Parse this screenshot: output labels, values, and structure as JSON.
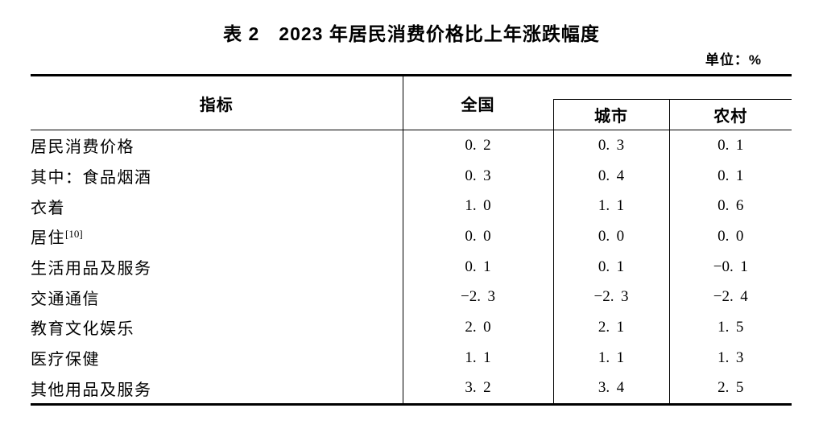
{
  "page": {
    "background_color": "#ffffff",
    "text_color": "#000000",
    "line_color": "#000000"
  },
  "title": "表 2　2023 年居民消费价格比上年涨跌幅度",
  "unit_label": "单位：%",
  "table": {
    "columns": {
      "indicator": "指标",
      "national": "全国",
      "urban": "城市",
      "rural": "农村"
    },
    "rows": [
      {
        "label": "居民消费价格",
        "indent": 0,
        "sup": "",
        "national": "0.2",
        "urban": "0.3",
        "rural": "0.1"
      },
      {
        "label": "其中：食品烟酒",
        "indent": 1,
        "sup": "",
        "national": "0.3",
        "urban": "0.4",
        "rural": "0.1"
      },
      {
        "label": "衣着",
        "indent": 2,
        "sup": "",
        "national": "1.0",
        "urban": "1.1",
        "rural": "0.6"
      },
      {
        "label": "居住",
        "indent": 2,
        "sup": "[10]",
        "national": "0.0",
        "urban": "0.0",
        "rural": "0.0"
      },
      {
        "label": "生活用品及服务",
        "indent": 2,
        "sup": "",
        "national": "0.1",
        "urban": "0.1",
        "rural": "-0.1"
      },
      {
        "label": "交通通信",
        "indent": 2,
        "sup": "",
        "national": "-2.3",
        "urban": "-2.3",
        "rural": "-2.4"
      },
      {
        "label": "教育文化娱乐",
        "indent": 2,
        "sup": "",
        "national": "2.0",
        "urban": "2.1",
        "rural": "1.5"
      },
      {
        "label": "医疗保健",
        "indent": 2,
        "sup": "",
        "national": "1.1",
        "urban": "1.1",
        "rural": "1.3"
      },
      {
        "label": "其他用品及服务",
        "indent": 2,
        "sup": "",
        "national": "3.2",
        "urban": "3.4",
        "rural": "2.5"
      }
    ]
  }
}
